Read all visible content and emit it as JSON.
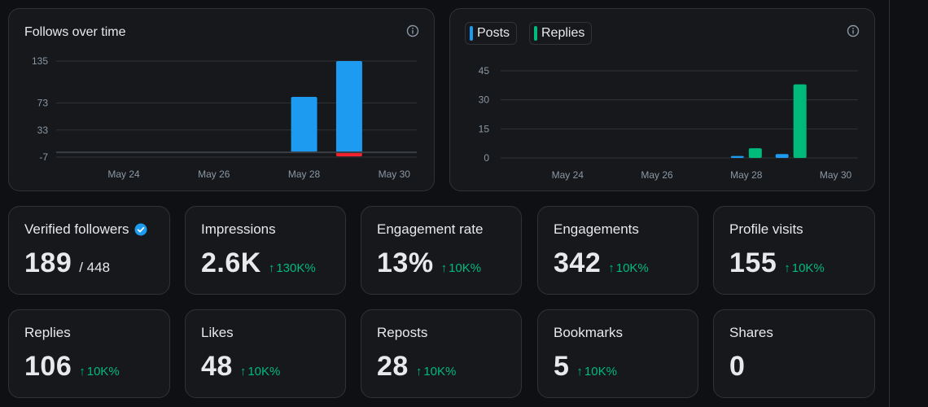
{
  "follows_card": {
    "title": "Follows over time"
  },
  "posts_card": {
    "legend": [
      {
        "label": "Posts",
        "color": "#1d9bf0"
      },
      {
        "label": "Replies",
        "color": "#00ba7c"
      }
    ]
  },
  "chart_data": [
    {
      "type": "bar",
      "title": "Follows over time",
      "x_tick_labels": [
        "May 24",
        "May 26",
        "May 28",
        "May 30"
      ],
      "y_tick_labels": [
        "135",
        "73",
        "33",
        "-7"
      ],
      "ylim": [
        -7,
        135
      ],
      "categories": [
        "May 23",
        "May 24",
        "May 25",
        "May 26",
        "May 27",
        "May 28",
        "May 29",
        "May 30"
      ],
      "series": [
        {
          "values": [
            0,
            0,
            0,
            0,
            0,
            82,
            135,
            0
          ],
          "color": "#1d9bf0"
        },
        {
          "values": [
            0,
            0,
            0,
            0,
            0,
            0,
            -6,
            0
          ],
          "color": "#f4212e"
        }
      ],
      "grid": true
    },
    {
      "type": "bar",
      "x_tick_labels": [
        "May 24",
        "May 26",
        "May 28",
        "May 30"
      ],
      "y_tick_labels": [
        "45",
        "30",
        "15",
        "0"
      ],
      "ylim": [
        0,
        45
      ],
      "categories": [
        "May 23",
        "May 24",
        "May 25",
        "May 26",
        "May 27",
        "May 28",
        "May 29",
        "May 30"
      ],
      "series": [
        {
          "name": "Posts",
          "values": [
            0,
            0,
            0,
            0,
            0,
            1,
            2,
            0
          ],
          "color": "#1d9bf0"
        },
        {
          "name": "Replies",
          "values": [
            0,
            0,
            0,
            0,
            0,
            5,
            38,
            0
          ],
          "color": "#00ba7c"
        }
      ],
      "grid": true
    }
  ],
  "stats_row1": [
    {
      "label": "Verified followers",
      "value": "189",
      "sub": "/ 448",
      "change": "",
      "verified": true
    },
    {
      "label": "Impressions",
      "value": "2.6K",
      "sub": "",
      "change": "130K%"
    },
    {
      "label": "Engagement rate",
      "value": "13%",
      "sub": "",
      "change": "10K%"
    },
    {
      "label": "Engagements",
      "value": "342",
      "sub": "",
      "change": "10K%"
    },
    {
      "label": "Profile visits",
      "value": "155",
      "sub": "",
      "change": "10K%"
    }
  ],
  "stats_row2": [
    {
      "label": "Replies",
      "value": "106",
      "change": "10K%"
    },
    {
      "label": "Likes",
      "value": "48",
      "change": "10K%"
    },
    {
      "label": "Reposts",
      "value": "28",
      "change": "10K%"
    },
    {
      "label": "Bookmarks",
      "value": "5",
      "change": "10K%"
    },
    {
      "label": "Shares",
      "value": "0",
      "change": ""
    }
  ],
  "colors": {
    "accent_blue": "#1d9bf0",
    "accent_green": "#00ba7c",
    "negative_red": "#f4212e",
    "card_bg": "#16181c",
    "border": "#2f3336"
  },
  "icons": [
    "info-icon",
    "verified-badge-icon",
    "arrow-up-icon"
  ]
}
